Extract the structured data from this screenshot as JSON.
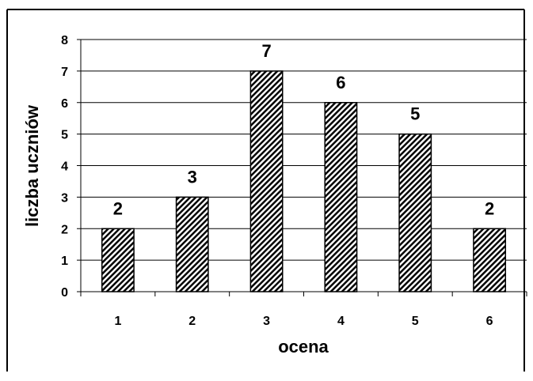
{
  "chart_data": {
    "type": "bar",
    "title": "",
    "xlabel": "ocena",
    "ylabel": "liczba uczniów",
    "categories": [
      "1",
      "2",
      "3",
      "4",
      "5",
      "6"
    ],
    "values": [
      2,
      3,
      7,
      6,
      5,
      2
    ],
    "data_labels": [
      "2",
      "3",
      "7",
      "6",
      "5",
      "2"
    ],
    "ylim": [
      0,
      8
    ],
    "y_ticks": [
      "0",
      "1",
      "2",
      "3",
      "4",
      "5",
      "6",
      "7",
      "8"
    ],
    "grid": true,
    "legend": "none",
    "bar_fill": "diagonal-hatch",
    "colors": {
      "bar_stroke": "#000000",
      "hatch": "#000000",
      "grid": "#000000",
      "background": "#ffffff"
    }
  }
}
